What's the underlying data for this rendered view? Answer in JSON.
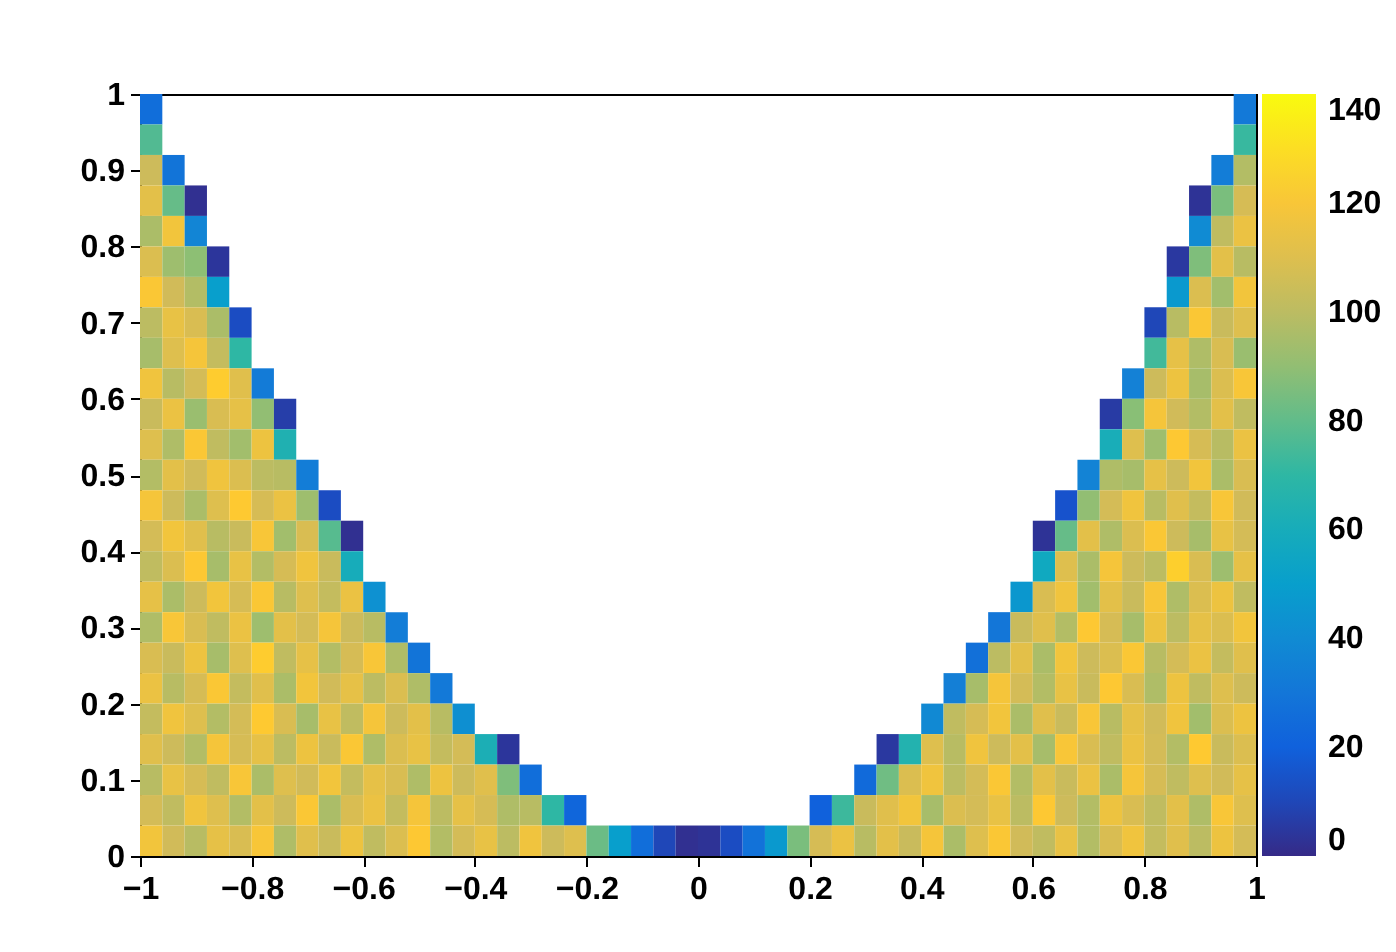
{
  "chart_data": {
    "type": "scatter",
    "marker": "square",
    "x": [
      -0.98,
      0.98,
      -0.98,
      0.98,
      -0.98,
      -0.94,
      0.94,
      0.98,
      -0.98,
      -0.94,
      -0.9,
      0.9,
      0.94,
      0.98,
      -0.98,
      -0.94,
      -0.9,
      0.9,
      0.94,
      0.98,
      -0.98,
      -0.94,
      -0.9,
      -0.86,
      0.86,
      0.9,
      0.94,
      0.98,
      -0.98,
      -0.94,
      -0.9,
      -0.86,
      0.86,
      0.9,
      0.94,
      0.98,
      -0.98,
      -0.94,
      -0.9,
      -0.86,
      -0.82,
      0.82,
      0.86,
      0.9,
      0.94,
      0.98,
      -0.98,
      -0.94,
      -0.9,
      -0.86,
      -0.82,
      0.82,
      0.86,
      0.9,
      0.94,
      0.98,
      -0.98,
      -0.94,
      -0.9,
      -0.86,
      -0.82,
      -0.78,
      0.78,
      0.82,
      0.86,
      0.9,
      0.94,
      0.98,
      -0.98,
      -0.94,
      -0.9,
      -0.86,
      -0.82,
      -0.78,
      -0.74,
      0.74,
      0.78,
      0.82,
      0.86,
      0.9,
      0.94,
      0.98,
      -0.98,
      -0.94,
      -0.9,
      -0.86,
      -0.82,
      -0.78,
      -0.74,
      0.74,
      0.78,
      0.82,
      0.86,
      0.9,
      0.94,
      0.98,
      -0.98,
      -0.94,
      -0.9,
      -0.86,
      -0.82,
      -0.78,
      -0.74,
      -0.7,
      0.7,
      0.74,
      0.78,
      0.82,
      0.86,
      0.9,
      0.94,
      0.98,
      -0.98,
      -0.94,
      -0.9,
      -0.86,
      -0.82,
      -0.78,
      -0.74,
      -0.7,
      -0.66,
      0.66,
      0.7,
      0.74,
      0.78,
      0.82,
      0.86,
      0.9,
      0.94,
      0.98,
      -0.98,
      -0.94,
      -0.9,
      -0.86,
      -0.82,
      -0.78,
      -0.74,
      -0.7,
      -0.66,
      -0.62,
      0.62,
      0.66,
      0.7,
      0.74,
      0.78,
      0.82,
      0.86,
      0.9,
      0.94,
      0.98,
      -0.98,
      -0.94,
      -0.9,
      -0.86,
      -0.82,
      -0.78,
      -0.74,
      -0.7,
      -0.66,
      -0.62,
      0.62,
      0.66,
      0.7,
      0.74,
      0.78,
      0.82,
      0.86,
      0.9,
      0.94,
      0.98,
      -0.98,
      -0.94,
      -0.9,
      -0.86,
      -0.82,
      -0.78,
      -0.74,
      -0.7,
      -0.66,
      -0.62,
      -0.58,
      0.58,
      0.62,
      0.66,
      0.7,
      0.74,
      0.78,
      0.82,
      0.86,
      0.9,
      0.94,
      0.98,
      -0.98,
      -0.94,
      -0.9,
      -0.86,
      -0.82,
      -0.78,
      -0.74,
      -0.7,
      -0.66,
      -0.62,
      -0.58,
      -0.54,
      0.54,
      0.58,
      0.62,
      0.66,
      0.7,
      0.74,
      0.78,
      0.82,
      0.86,
      0.9,
      0.94,
      0.98,
      -0.98,
      -0.94,
      -0.9,
      -0.86,
      -0.82,
      -0.78,
      -0.74,
      -0.7,
      -0.66,
      -0.62,
      -0.58,
      -0.54,
      -0.5,
      0.5,
      0.54,
      0.58,
      0.62,
      0.66,
      0.7,
      0.74,
      0.78,
      0.82,
      0.86,
      0.9,
      0.94,
      0.98,
      -0.98,
      -0.94,
      -0.9,
      -0.86,
      -0.82,
      -0.78,
      -0.74,
      -0.7,
      -0.66,
      -0.62,
      -0.58,
      -0.54,
      -0.5,
      -0.46,
      0.46,
      0.5,
      0.54,
      0.58,
      0.62,
      0.66,
      0.7,
      0.74,
      0.78,
      0.82,
      0.86,
      0.9,
      0.94,
      0.98,
      -0.98,
      -0.94,
      -0.9,
      -0.86,
      -0.82,
      -0.78,
      -0.74,
      -0.7,
      -0.66,
      -0.62,
      -0.58,
      -0.54,
      -0.5,
      -0.46,
      -0.42,
      0.42,
      0.46,
      0.5,
      0.54,
      0.58,
      0.62,
      0.66,
      0.7,
      0.74,
      0.78,
      0.82,
      0.86,
      0.9,
      0.94,
      0.98,
      -0.98,
      -0.94,
      -0.9,
      -0.86,
      -0.82,
      -0.78,
      -0.74,
      -0.7,
      -0.66,
      -0.62,
      -0.58,
      -0.54,
      -0.5,
      -0.46,
      -0.42,
      -0.38,
      -0.34,
      0.34,
      0.38,
      0.42,
      0.46,
      0.5,
      0.54,
      0.58,
      0.62,
      0.66,
      0.7,
      0.74,
      0.78,
      0.82,
      0.86,
      0.9,
      0.94,
      0.98,
      -0.98,
      -0.94,
      -0.9,
      -0.86,
      -0.82,
      -0.78,
      -0.74,
      -0.7,
      -0.66,
      -0.62,
      -0.58,
      -0.54,
      -0.5,
      -0.46,
      -0.42,
      -0.38,
      -0.34,
      -0.3,
      0.3,
      0.34,
      0.38,
      0.42,
      0.46,
      0.5,
      0.54,
      0.58,
      0.62,
      0.66,
      0.7,
      0.74,
      0.78,
      0.82,
      0.86,
      0.9,
      0.94,
      0.98,
      -0.98,
      -0.94,
      -0.9,
      -0.86,
      -0.82,
      -0.78,
      -0.74,
      -0.7,
      -0.66,
      -0.62,
      -0.58,
      -0.54,
      -0.5,
      -0.46,
      -0.42,
      -0.38,
      -0.34,
      -0.3,
      -0.26,
      -0.22,
      0.22,
      0.26,
      0.3,
      0.34,
      0.38,
      0.42,
      0.46,
      0.5,
      0.54,
      0.58,
      0.62,
      0.66,
      0.7,
      0.74,
      0.78,
      0.82,
      0.86,
      0.9,
      0.94,
      0.98,
      -0.98,
      -0.94,
      -0.9,
      -0.86,
      -0.82,
      -0.78,
      -0.74,
      -0.7,
      -0.66,
      -0.62,
      -0.58,
      -0.54,
      -0.5,
      -0.46,
      -0.42,
      -0.38,
      -0.34,
      -0.3,
      -0.26,
      -0.22,
      -0.18,
      -0.14,
      -0.1,
      -0.06,
      -0.02,
      0.02,
      0.06,
      0.1,
      0.14,
      0.18,
      0.22,
      0.26,
      0.3,
      0.34,
      0.38,
      0.42,
      0.46,
      0.5,
      0.54,
      0.58,
      0.62,
      0.66,
      0.7,
      0.74,
      0.78,
      0.82,
      0.86,
      0.9,
      0.94,
      0.98
    ],
    "values": [
      0.98,
      0.98,
      0.94,
      0.94,
      0.9,
      0.9,
      0.9,
      0.9,
      0.86,
      0.86,
      0.86,
      0.86,
      0.86,
      0.86,
      0.82,
      0.82,
      0.82,
      0.82,
      0.82,
      0.82,
      0.78,
      0.78,
      0.78,
      0.78,
      0.78,
      0.78,
      0.78,
      0.78,
      0.74,
      0.74,
      0.74,
      0.74,
      0.74,
      0.74,
      0.74,
      0.74,
      0.7,
      0.7,
      0.7,
      0.7,
      0.7,
      0.7,
      0.7,
      0.7,
      0.7,
      0.7,
      0.66,
      0.66,
      0.66,
      0.66,
      0.66,
      0.66,
      0.66,
      0.66,
      0.66,
      0.66,
      0.62,
      0.62,
      0.62,
      0.62,
      0.62,
      0.62,
      0.62,
      0.62,
      0.62,
      0.62,
      0.62,
      0.62,
      0.58,
      0.58,
      0.58,
      0.58,
      0.58,
      0.58,
      0.58,
      0.58,
      0.58,
      0.58,
      0.58,
      0.58,
      0.58,
      0.58,
      0.54,
      0.54,
      0.54,
      0.54,
      0.54,
      0.54,
      0.54,
      0.54,
      0.54,
      0.54,
      0.54,
      0.54,
      0.54,
      0.54,
      0.5,
      0.5,
      0.5,
      0.5,
      0.5,
      0.5,
      0.5,
      0.5,
      0.5,
      0.5,
      0.5,
      0.5,
      0.5,
      0.5,
      0.5,
      0.5,
      0.46,
      0.46,
      0.46,
      0.46,
      0.46,
      0.46,
      0.46,
      0.46,
      0.46,
      0.46,
      0.46,
      0.46,
      0.46,
      0.46,
      0.46,
      0.46,
      0.46,
      0.46,
      0.42,
      0.42,
      0.42,
      0.42,
      0.42,
      0.42,
      0.42,
      0.42,
      0.42,
      0.42,
      0.42,
      0.42,
      0.42,
      0.42,
      0.42,
      0.42,
      0.42,
      0.42,
      0.42,
      0.42,
      0.38,
      0.38,
      0.38,
      0.38,
      0.38,
      0.38,
      0.38,
      0.38,
      0.38,
      0.38,
      0.38,
      0.38,
      0.38,
      0.38,
      0.38,
      0.38,
      0.38,
      0.38,
      0.38,
      0.38,
      0.34,
      0.34,
      0.34,
      0.34,
      0.34,
      0.34,
      0.34,
      0.34,
      0.34,
      0.34,
      0.34,
      0.34,
      0.34,
      0.34,
      0.34,
      0.34,
      0.34,
      0.34,
      0.34,
      0.34,
      0.34,
      0.34,
      0.3,
      0.3,
      0.3,
      0.3,
      0.3,
      0.3,
      0.3,
      0.3,
      0.3,
      0.3,
      0.3,
      0.3,
      0.3,
      0.3,
      0.3,
      0.3,
      0.3,
      0.3,
      0.3,
      0.3,
      0.3,
      0.3,
      0.3,
      0.3,
      0.26,
      0.26,
      0.26,
      0.26,
      0.26,
      0.26,
      0.26,
      0.26,
      0.26,
      0.26,
      0.26,
      0.26,
      0.26,
      0.26,
      0.26,
      0.26,
      0.26,
      0.26,
      0.26,
      0.26,
      0.26,
      0.26,
      0.26,
      0.26,
      0.26,
      0.26,
      0.22,
      0.22,
      0.22,
      0.22,
      0.22,
      0.22,
      0.22,
      0.22,
      0.22,
      0.22,
      0.22,
      0.22,
      0.22,
      0.22,
      0.22,
      0.22,
      0.22,
      0.22,
      0.22,
      0.22,
      0.22,
      0.22,
      0.22,
      0.22,
      0.22,
      0.22,
      0.22,
      0.22,
      0.18,
      0.18,
      0.18,
      0.18,
      0.18,
      0.18,
      0.18,
      0.18,
      0.18,
      0.18,
      0.18,
      0.18,
      0.18,
      0.18,
      0.18,
      0.18,
      0.18,
      0.18,
      0.18,
      0.18,
      0.18,
      0.18,
      0.18,
      0.18,
      0.18,
      0.18,
      0.18,
      0.18,
      0.18,
      0.18,
      0.14,
      0.14,
      0.14,
      0.14,
      0.14,
      0.14,
      0.14,
      0.14,
      0.14,
      0.14,
      0.14,
      0.14,
      0.14,
      0.14,
      0.14,
      0.14,
      0.14,
      0.14,
      0.14,
      0.14,
      0.14,
      0.14,
      0.14,
      0.14,
      0.14,
      0.14,
      0.14,
      0.14,
      0.14,
      0.14,
      0.14,
      0.14,
      0.14,
      0.14,
      0.1,
      0.1,
      0.1,
      0.1,
      0.1,
      0.1,
      0.1,
      0.1,
      0.1,
      0.1,
      0.1,
      0.1,
      0.1,
      0.1,
      0.1,
      0.1,
      0.1,
      0.1,
      0.1,
      0.1,
      0.1,
      0.1,
      0.1,
      0.1,
      0.1,
      0.1,
      0.1,
      0.1,
      0.1,
      0.1,
      0.1,
      0.1,
      0.1,
      0.1,
      0.1,
      0.1,
      0.06,
      0.06,
      0.06,
      0.06,
      0.06,
      0.06,
      0.06,
      0.06,
      0.06,
      0.06,
      0.06,
      0.06,
      0.06,
      0.06,
      0.06,
      0.06,
      0.06,
      0.06,
      0.06,
      0.06,
      0.06,
      0.06,
      0.06,
      0.06,
      0.06,
      0.06,
      0.06,
      0.06,
      0.06,
      0.06,
      0.06,
      0.06,
      0.06,
      0.06,
      0.06,
      0.06,
      0.06,
      0.06,
      0.06,
      0.06,
      0.02,
      0.02,
      0.02,
      0.02,
      0.02,
      0.02,
      0.02,
      0.02,
      0.02,
      0.02,
      0.02,
      0.02,
      0.02,
      0.02,
      0.02,
      0.02,
      0.02,
      0.02,
      0.02,
      0.02,
      0.02,
      0.02,
      0.02,
      0.02,
      0.02,
      0.02,
      0.02,
      0.02,
      0.02,
      0.02,
      0.02,
      0.02,
      0.02,
      0.02,
      0.02,
      0.02,
      0.02,
      0.02,
      0.02,
      0.02,
      0.02,
      0.02,
      0.02,
      0.02,
      0.02,
      0.02,
      0.02,
      0.02,
      0.02,
      0.02
    ],
    "cvalues": [
      26,
      31,
      77,
      72,
      104,
      29,
      33,
      98,
      112,
      81,
      2,
      3,
      85,
      107,
      96,
      118,
      37,
      40,
      101,
      115,
      109,
      93,
      89,
      4,
      5,
      86,
      112,
      99,
      121,
      105,
      98,
      50,
      47,
      109,
      94,
      118,
      100,
      114,
      108,
      96,
      12,
      10,
      99,
      121,
      103,
      110,
      95,
      110,
      119,
      102,
      70,
      74,
      113,
      97,
      108,
      92,
      117,
      99,
      106,
      124,
      111,
      32,
      35,
      104,
      116,
      95,
      109,
      120,
      103,
      115,
      92,
      108,
      113,
      90,
      7,
      6,
      88,
      119,
      105,
      98,
      112,
      101,
      110,
      97,
      121,
      101,
      94,
      116,
      64,
      61,
      110,
      93,
      122,
      107,
      99,
      115,
      98,
      112,
      105,
      117,
      109,
      100,
      99,
      33,
      36,
      97,
      95,
      113,
      104,
      118,
      96,
      108,
      119,
      104,
      96,
      110,
      123,
      107,
      115,
      93,
      12,
      14,
      90,
      106,
      117,
      99,
      111,
      102,
      120,
      105,
      106,
      118,
      111,
      99,
      103,
      120,
      94,
      108,
      78,
      2,
      3,
      81,
      112,
      97,
      109,
      121,
      104,
      95,
      114,
      106,
      101,
      109,
      122,
      95,
      114,
      98,
      107,
      117,
      103,
      60,
      57,
      110,
      96,
      119,
      104,
      100,
      125,
      108,
      93,
      113,
      113,
      96,
      104,
      118,
      107,
      121,
      99,
      110,
      102,
      115,
      43,
      46,
      108,
      117,
      94,
      112,
      103,
      120,
      97,
      109,
      116,
      101,
      97,
      120,
      108,
      101,
      115,
      93,
      112,
      106,
      119,
      104,
      99,
      33,
      30,
      103,
      111,
      98,
      122,
      107,
      95,
      116,
      100,
      113,
      109,
      118,
      108,
      103,
      116,
      95,
      110,
      124,
      101,
      113,
      98,
      107,
      120,
      97,
      29,
      27,
      100,
      112,
      96,
      118,
      104,
      109,
      121,
      99,
      106,
      115,
      102,
      111,
      115,
      99,
      107,
      121,
      102,
      111,
      96,
      118,
      105,
      113,
      100,
      109,
      97,
      31,
      34,
      95,
      119,
      106,
      98,
      114,
      103,
      122,
      108,
      97,
      116,
      101,
      110,
      104,
      102,
      117,
      110,
      98,
      106,
      123,
      108,
      95,
      114,
      101,
      119,
      104,
      112,
      99,
      42,
      39,
      101,
      107,
      118,
      96,
      111,
      103,
      120,
      99,
      113,
      105,
      117,
      94,
      109,
      116,
      111,
      104,
      98,
      119,
      107,
      113,
      100,
      116,
      103,
      121,
      97,
      109,
      114,
      102,
      106,
      62,
      4,
      5,
      65,
      110,
      99,
      117,
      104,
      112,
      95,
      120,
      108,
      101,
      115,
      106,
      98,
      123,
      103,
      109,
      99,
      114,
      107,
      101,
      120,
      96,
      110,
      105,
      118,
      102,
      113,
      108,
      97,
      116,
      104,
      111,
      86,
      26,
      24,
      83,
      109,
      117,
      100,
      106,
      121,
      98,
      112,
      103,
      115,
      96,
      119,
      107,
      101,
      110,
      105,
      113,
      106,
      101,
      117,
      110,
      98,
      112,
      104,
      121,
      96,
      108,
      115,
      102,
      119,
      100,
      113,
      107,
      97,
      99,
      70,
      22,
      20,
      73,
      103,
      111,
      118,
      95,
      109,
      106,
      114,
      100,
      122,
      104,
      98,
      116,
      108,
      101,
      112,
      97,
      120,
      110,
      118,
      105,
      99,
      113,
      108,
      120,
      97,
      111,
      103,
      116,
      101,
      109,
      122,
      98,
      106,
      114,
      100,
      117,
      104,
      110,
      82,
      50,
      26,
      10,
      2,
      3,
      12,
      28,
      47,
      85,
      107,
      115,
      99,
      112,
      103,
      119,
      96,
      110,
      121,
      105,
      101,
      114,
      98,
      108,
      117,
      102,
      111,
      100,
      116,
      106
    ],
    "xlim": [
      -1,
      1
    ],
    "ylim": [
      0,
      1
    ],
    "xticks": [
      -1,
      -0.8,
      -0.6,
      -0.4,
      -0.2,
      0,
      0.2,
      0.4,
      0.6,
      0.8,
      1
    ],
    "yticks": [
      0,
      0.1,
      0.2,
      0.3,
      0.4,
      0.5,
      0.6,
      0.7,
      0.8,
      0.9,
      1
    ],
    "clim": [
      0,
      140
    ],
    "cticks": [
      0,
      20,
      40,
      60,
      80,
      100,
      120,
      140
    ]
  }
}
